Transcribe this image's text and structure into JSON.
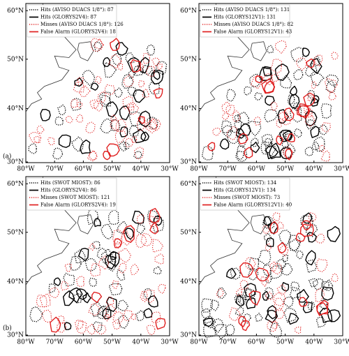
{
  "panels": [
    {
      "legend": [
        "Hits (AVISO DUACS 1/8°): 87",
        "Hits (GLORYS2V4): 87",
        "Misses (AVISO DUACS 1/8°): 126",
        "False Alarm (GLORYS2V4): 18"
      ]
    },
    {
      "legend": [
        "Hits (AVISO DUACS 1/8°): 131",
        "Hits (GLORYS12V1): 131",
        "Misses (AVISO DUACS 1/8°): 82",
        "False Alarm (GLORYS12V1): 43"
      ]
    },
    {
      "legend": [
        "Hits (SWOT MIOST): 86",
        "Hits (GLORYS2V4): 86",
        "Misses (SWOT MIOST): 121",
        "False Alarm (GLORYS2V4): 19"
      ]
    },
    {
      "legend": [
        "Hits (SWOT MIOST): 134",
        "Hits (GLORYS12V1): 134",
        "Misses (SWOT MIOST): 73",
        "False Alarm (GLORYS12V1): 40"
      ]
    }
  ],
  "lat_ticks": [
    "60°N",
    "50°N",
    "40°N",
    "30°N"
  ],
  "lon_ticks": [
    "80°W",
    "70°W",
    "60°W",
    "50°W",
    "40°W",
    "30°W"
  ],
  "row_labels": [
    "(a)",
    "(b)"
  ]
}
